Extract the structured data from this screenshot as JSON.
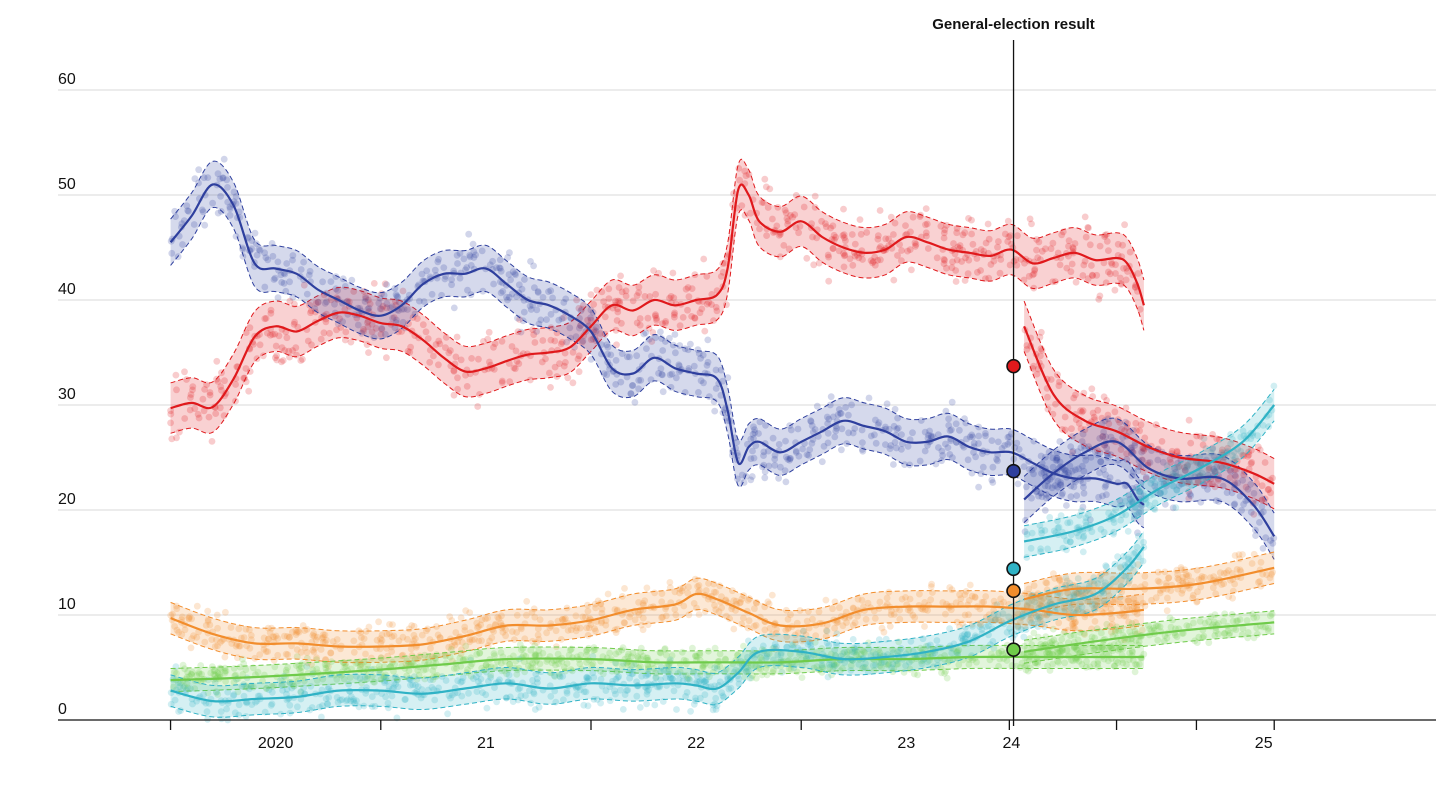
{
  "chart_data": {
    "type": "line",
    "title": "",
    "xlabel": "",
    "ylabel": "",
    "ylim": [
      0,
      60
    ],
    "grid": true,
    "y_ticks": [
      0,
      10,
      20,
      30,
      40,
      50,
      60
    ],
    "x_year_labels": [
      {
        "label": "2020",
        "at": 2020.5
      },
      {
        "label": "21",
        "at": 2021.5
      },
      {
        "label": "22",
        "at": 2022.5
      },
      {
        "label": "23",
        "at": 2023.5
      },
      {
        "label": "24",
        "at": 2024.0
      },
      {
        "label": "25",
        "at": 2025.2
      }
    ],
    "x_ticks": [
      2020.0,
      2021.0,
      2022.0,
      2023.0,
      2023.99,
      2024.5,
      2024.88,
      2025.25
    ],
    "xlim": [
      2019.75,
      2025.62
    ],
    "election": {
      "label": "General-election result",
      "x": 2024.01
    },
    "series": [
      {
        "color": "#e0191c",
        "band": 2.4,
        "points": [
          [
            2020.0,
            29.7
          ],
          [
            2020.1,
            30.2
          ],
          [
            2020.2,
            29.8
          ],
          [
            2020.3,
            32.5
          ],
          [
            2020.4,
            36.5
          ],
          [
            2020.5,
            37.5
          ],
          [
            2020.6,
            37.0
          ],
          [
            2020.7,
            38.0
          ],
          [
            2020.8,
            38.8
          ],
          [
            2020.9,
            38.5
          ],
          [
            2021.0,
            37.8
          ],
          [
            2021.1,
            37.5
          ],
          [
            2021.2,
            36.2
          ],
          [
            2021.3,
            34.5
          ],
          [
            2021.4,
            33.2
          ],
          [
            2021.5,
            33.5
          ],
          [
            2021.6,
            34.2
          ],
          [
            2021.7,
            34.8
          ],
          [
            2021.8,
            35.0
          ],
          [
            2021.9,
            35.5
          ],
          [
            2022.0,
            37.5
          ],
          [
            2022.1,
            39.5
          ],
          [
            2022.2,
            39.0
          ],
          [
            2022.3,
            40.0
          ],
          [
            2022.4,
            39.5
          ],
          [
            2022.5,
            40.0
          ],
          [
            2022.6,
            40.5
          ],
          [
            2022.65,
            43.0
          ],
          [
            2022.7,
            50.5
          ],
          [
            2022.75,
            50.0
          ],
          [
            2022.8,
            47.5
          ],
          [
            2022.9,
            46.5
          ],
          [
            2023.0,
            47.5
          ],
          [
            2023.1,
            46.0
          ],
          [
            2023.2,
            45.0
          ],
          [
            2023.3,
            44.5
          ],
          [
            2023.4,
            44.8
          ],
          [
            2023.5,
            46.0
          ],
          [
            2023.6,
            45.5
          ],
          [
            2023.7,
            44.8
          ],
          [
            2023.8,
            44.5
          ],
          [
            2023.9,
            44.2
          ],
          [
            2024.0,
            44.8
          ],
          [
            2024.1,
            43.5
          ],
          [
            2024.2,
            44.0
          ],
          [
            2024.3,
            44.5
          ],
          [
            2024.4,
            43.8
          ],
          [
            2024.5,
            44.0
          ],
          [
            2024.55,
            43.5
          ],
          [
            2024.6,
            41.5
          ],
          [
            2024.63,
            39.5
          ]
        ],
        "post": [
          [
            2024.06,
            37.5
          ],
          [
            2024.2,
            31.0
          ],
          [
            2024.35,
            28.5
          ],
          [
            2024.5,
            27.5
          ],
          [
            2024.65,
            26.0
          ],
          [
            2024.8,
            25.0
          ],
          [
            2025.0,
            24.5
          ],
          [
            2025.15,
            23.5
          ],
          [
            2025.25,
            22.5
          ]
        ],
        "result": 33.7
      },
      {
        "color": "#2e3f9e",
        "band": 2.2,
        "points": [
          [
            2020.0,
            45.5
          ],
          [
            2020.1,
            48.0
          ],
          [
            2020.2,
            51.0
          ],
          [
            2020.3,
            49.0
          ],
          [
            2020.4,
            43.5
          ],
          [
            2020.5,
            43.0
          ],
          [
            2020.6,
            42.5
          ],
          [
            2020.7,
            41.0
          ],
          [
            2020.8,
            40.0
          ],
          [
            2020.9,
            39.0
          ],
          [
            2021.0,
            38.5
          ],
          [
            2021.1,
            39.5
          ],
          [
            2021.2,
            41.5
          ],
          [
            2021.3,
            42.5
          ],
          [
            2021.4,
            42.5
          ],
          [
            2021.5,
            43.0
          ],
          [
            2021.6,
            41.5
          ],
          [
            2021.7,
            40.0
          ],
          [
            2021.8,
            39.5
          ],
          [
            2021.9,
            38.5
          ],
          [
            2022.0,
            37.0
          ],
          [
            2022.1,
            33.5
          ],
          [
            2022.2,
            33.0
          ],
          [
            2022.3,
            34.5
          ],
          [
            2022.4,
            33.5
          ],
          [
            2022.5,
            33.0
          ],
          [
            2022.6,
            32.5
          ],
          [
            2022.65,
            29.5
          ],
          [
            2022.7,
            24.5
          ],
          [
            2022.75,
            26.0
          ],
          [
            2022.8,
            26.5
          ],
          [
            2022.9,
            25.5
          ],
          [
            2023.0,
            26.5
          ],
          [
            2023.1,
            27.5
          ],
          [
            2023.2,
            28.5
          ],
          [
            2023.3,
            28.0
          ],
          [
            2023.4,
            27.5
          ],
          [
            2023.5,
            26.5
          ],
          [
            2023.6,
            26.5
          ],
          [
            2023.7,
            27.0
          ],
          [
            2023.8,
            26.0
          ],
          [
            2023.9,
            25.5
          ],
          [
            2024.0,
            25.5
          ],
          [
            2024.1,
            24.5
          ],
          [
            2024.2,
            23.5
          ],
          [
            2024.3,
            23.0
          ],
          [
            2024.4,
            23.0
          ],
          [
            2024.5,
            22.5
          ],
          [
            2024.55,
            22.5
          ],
          [
            2024.6,
            21.0
          ],
          [
            2024.63,
            20.5
          ]
        ],
        "post": [
          [
            2024.06,
            21.0
          ],
          [
            2024.2,
            23.5
          ],
          [
            2024.35,
            25.5
          ],
          [
            2024.5,
            26.5
          ],
          [
            2024.65,
            24.0
          ],
          [
            2024.8,
            23.0
          ],
          [
            2025.0,
            23.0
          ],
          [
            2025.15,
            20.5
          ],
          [
            2025.25,
            17.5
          ]
        ],
        "result": 23.7
      },
      {
        "color": "#f28d2c",
        "band": 1.5,
        "points": [
          [
            2020.0,
            9.7
          ],
          [
            2020.2,
            8.2
          ],
          [
            2020.4,
            7.3
          ],
          [
            2020.6,
            7.3
          ],
          [
            2020.8,
            7.0
          ],
          [
            2021.0,
            7.0
          ],
          [
            2021.2,
            7.2
          ],
          [
            2021.4,
            8.0
          ],
          [
            2021.6,
            9.0
          ],
          [
            2021.8,
            9.0
          ],
          [
            2022.0,
            9.5
          ],
          [
            2022.2,
            10.5
          ],
          [
            2022.4,
            11.0
          ],
          [
            2022.5,
            12.0
          ],
          [
            2022.6,
            11.5
          ],
          [
            2022.75,
            10.2
          ],
          [
            2022.9,
            9.0
          ],
          [
            2023.1,
            9.2
          ],
          [
            2023.3,
            10.5
          ],
          [
            2023.5,
            10.8
          ],
          [
            2023.7,
            10.8
          ],
          [
            2023.9,
            10.8
          ],
          [
            2024.1,
            10.5
          ],
          [
            2024.3,
            10.0
          ],
          [
            2024.5,
            10.2
          ],
          [
            2024.63,
            10.5
          ]
        ],
        "post": [
          [
            2024.06,
            11.5
          ],
          [
            2024.3,
            12.5
          ],
          [
            2024.6,
            12.5
          ],
          [
            2024.9,
            13.0
          ],
          [
            2025.25,
            14.5
          ]
        ],
        "result": 12.3
      },
      {
        "color": "#6fcb4a",
        "band": 1.1,
        "points": [
          [
            2020.0,
            3.8
          ],
          [
            2020.3,
            4.0
          ],
          [
            2020.6,
            4.3
          ],
          [
            2021.0,
            4.8
          ],
          [
            2021.3,
            5.3
          ],
          [
            2021.6,
            5.8
          ],
          [
            2022.0,
            5.8
          ],
          [
            2022.3,
            5.5
          ],
          [
            2022.6,
            5.5
          ],
          [
            2022.9,
            5.5
          ],
          [
            2023.2,
            5.8
          ],
          [
            2023.5,
            5.8
          ],
          [
            2023.8,
            6.0
          ],
          [
            2024.1,
            6.0
          ],
          [
            2024.4,
            6.0
          ],
          [
            2024.63,
            6.0
          ]
        ],
        "post": [
          [
            2024.06,
            6.5
          ],
          [
            2024.4,
            7.5
          ],
          [
            2024.8,
            8.5
          ],
          [
            2025.25,
            9.3
          ]
        ],
        "result": 6.7
      },
      {
        "color": "#2fb2c5",
        "band": 1.5,
        "points": [
          [
            2020.0,
            2.8
          ],
          [
            2020.2,
            1.8
          ],
          [
            2020.4,
            2.0
          ],
          [
            2020.6,
            2.2
          ],
          [
            2020.8,
            2.8
          ],
          [
            2021.0,
            2.8
          ],
          [
            2021.2,
            2.5
          ],
          [
            2021.4,
            3.0
          ],
          [
            2021.6,
            3.5
          ],
          [
            2021.8,
            3.0
          ],
          [
            2022.0,
            3.5
          ],
          [
            2022.2,
            3.3
          ],
          [
            2022.4,
            3.5
          ],
          [
            2022.5,
            3.3
          ],
          [
            2022.6,
            3.0
          ],
          [
            2022.7,
            4.5
          ],
          [
            2022.8,
            6.5
          ],
          [
            2023.0,
            6.5
          ],
          [
            2023.2,
            5.8
          ],
          [
            2023.4,
            6.0
          ],
          [
            2023.6,
            6.5
          ],
          [
            2023.8,
            7.5
          ],
          [
            2024.0,
            9.5
          ],
          [
            2024.2,
            11.0
          ],
          [
            2024.4,
            12.0
          ],
          [
            2024.55,
            14.5
          ],
          [
            2024.63,
            16.5
          ]
        ],
        "post": [
          [
            2024.06,
            17.0
          ],
          [
            2024.3,
            18.0
          ],
          [
            2024.5,
            19.5
          ],
          [
            2024.7,
            22.0
          ],
          [
            2024.9,
            24.0
          ],
          [
            2025.1,
            26.5
          ],
          [
            2025.25,
            30.0
          ]
        ],
        "result": 14.4
      }
    ]
  }
}
